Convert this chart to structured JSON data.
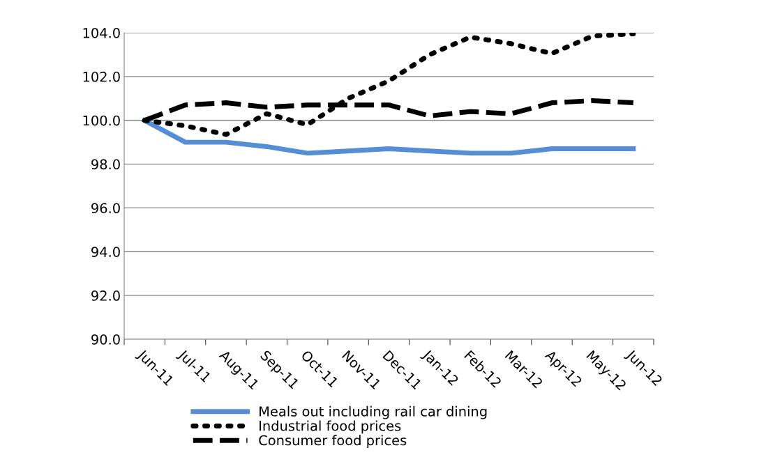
{
  "chart_data": {
    "type": "line",
    "categories": [
      "Jun-11",
      "Jul-11",
      "Aug-11",
      "Sep-11",
      "Oct-11",
      "Nov-11",
      "Dec-11",
      "Jan-12",
      "Feb-12",
      "Mar-12",
      "Apr-12",
      "May-12",
      "Jun-12"
    ],
    "series": [
      {
        "name": "Meals out including rail car dining",
        "color": "#558ed5",
        "line_style": "solid",
        "values": [
          100,
          99.0,
          99.0,
          98.8,
          98.5,
          98.6,
          98.7,
          98.6,
          98.5,
          98.5,
          98.7,
          98.7,
          98.7
        ]
      },
      {
        "name": "Industrial food prices",
        "color": "#000000",
        "line_style": "dotted",
        "values": [
          100,
          99.75,
          99.35,
          100.3,
          99.8,
          101.0,
          101.8,
          103.0,
          103.8,
          103.5,
          103.05,
          103.85,
          103.95
        ]
      },
      {
        "name": "Consumer food prices",
        "color": "#000000",
        "line_style": "dashed",
        "values": [
          100,
          100.7,
          100.8,
          100.6,
          100.7,
          100.7,
          100.7,
          100.2,
          100.4,
          100.3,
          100.8,
          100.9,
          100.8
        ]
      }
    ],
    "ylim": [
      90,
      104
    ],
    "yticks": [
      {
        "value": 90,
        "label": "90.0"
      },
      {
        "value": 92,
        "label": "92.0"
      },
      {
        "value": 94,
        "label": "94.0"
      },
      {
        "value": 96,
        "label": "96.0"
      },
      {
        "value": 98,
        "label": "98.0"
      },
      {
        "value": 100,
        "label": "100.0"
      },
      {
        "value": 102,
        "label": "102.0"
      },
      {
        "value": 104,
        "label": "104.0"
      }
    ],
    "grid": "y",
    "legend": "bottom",
    "marker": "none"
  }
}
